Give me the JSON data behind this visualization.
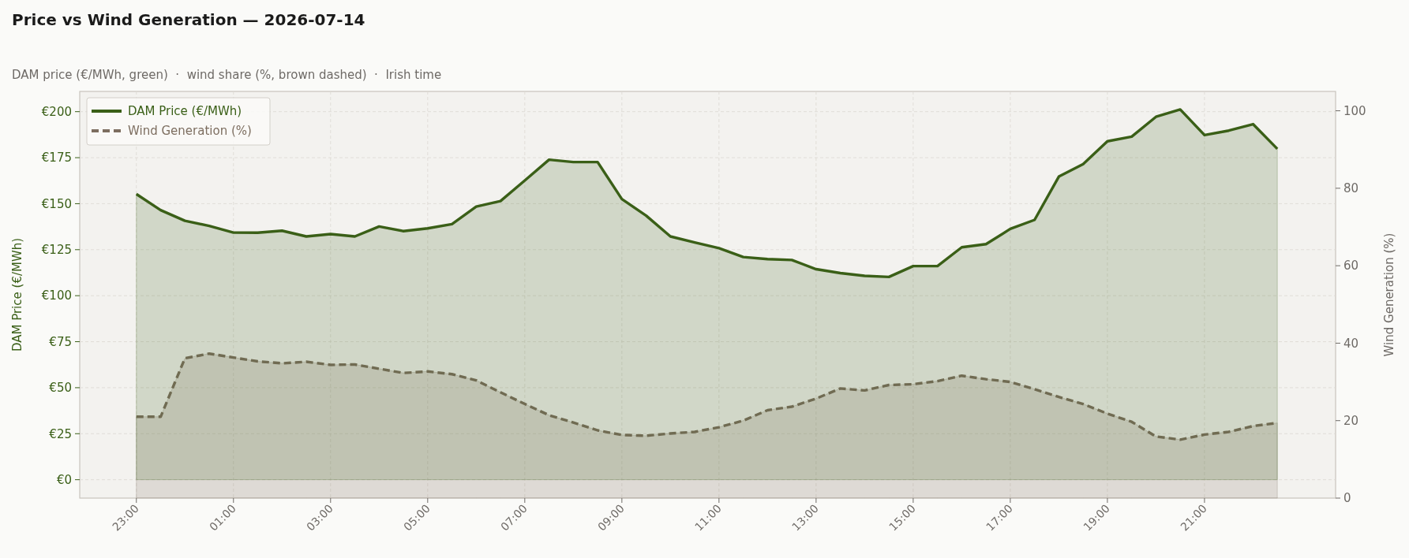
{
  "chart_data": {
    "type": "area",
    "title": "Price vs Wind Generation — 2026-07-14",
    "subtitle": "DAM price (€/MWh, green)  ·  wind share (%, brown dashed)  ·  Irish time",
    "ylabel": "DAM Price (€/MWh)",
    "y2label": "Wind Generation (%)",
    "x": [
      "2026-07-13T23:00",
      "2026-07-13T23:30",
      "2026-07-14T00:00",
      "2026-07-14T00:30",
      "2026-07-14T01:00",
      "2026-07-14T01:30",
      "2026-07-14T02:00",
      "2026-07-14T02:30",
      "2026-07-14T03:00",
      "2026-07-14T03:30",
      "2026-07-14T04:00",
      "2026-07-14T04:30",
      "2026-07-14T05:00",
      "2026-07-14T05:30",
      "2026-07-14T06:00",
      "2026-07-14T06:30",
      "2026-07-14T07:00",
      "2026-07-14T07:30",
      "2026-07-14T08:00",
      "2026-07-14T08:30",
      "2026-07-14T09:00",
      "2026-07-14T09:30",
      "2026-07-14T10:00",
      "2026-07-14T10:30",
      "2026-07-14T11:00",
      "2026-07-14T11:30",
      "2026-07-14T12:00",
      "2026-07-14T12:30",
      "2026-07-14T13:00",
      "2026-07-14T13:30",
      "2026-07-14T14:00",
      "2026-07-14T14:30",
      "2026-07-14T15:00",
      "2026-07-14T15:30",
      "2026-07-14T16:00",
      "2026-07-14T16:30",
      "2026-07-14T17:00",
      "2026-07-14T17:30",
      "2026-07-14T18:00",
      "2026-07-14T18:30",
      "2026-07-14T19:00",
      "2026-07-14T19:30",
      "2026-07-14T20:00",
      "2026-07-14T20:30",
      "2026-07-14T21:00",
      "2026-07-14T21:30",
      "2026-07-14T22:00",
      "2026-07-14T22:30"
    ],
    "series": [
      {
        "name": "DAM Price (€/MWh)",
        "color": "#3a5f17",
        "line_style": "solid",
        "values": [
          155.2,
          146.5,
          140.7,
          137.9,
          134.3,
          134.2,
          135.3,
          132.2,
          133.5,
          132.2,
          137.6,
          135.1,
          136.6,
          138.9,
          148.4,
          151.4,
          162.6,
          173.9,
          172.6,
          172.6,
          152.5,
          143.5,
          132.2,
          128.9,
          125.8,
          121.0,
          119.9,
          119.4,
          114.4,
          112.3,
          110.8,
          110.2,
          116.1,
          116.1,
          126.3,
          128.0,
          136.3,
          141.2,
          164.7,
          171.5,
          183.9,
          186.4,
          197.2,
          201.2,
          187.3,
          189.7,
          193.2,
          179.8
        ]
      },
      {
        "name": "Wind Generation (%)",
        "color": "#7d6e60",
        "axis": "y2",
        "line_style": "dashed",
        "values": [
          21.0,
          21.0,
          36.1,
          37.3,
          36.3,
          35.3,
          34.8,
          35.2,
          34.4,
          34.5,
          33.4,
          32.3,
          32.7,
          32.0,
          30.4,
          27.3,
          24.3,
          21.4,
          19.5,
          17.5,
          16.3,
          16.1,
          16.7,
          17.1,
          18.3,
          20.0,
          22.7,
          23.6,
          25.7,
          28.3,
          27.8,
          29.2,
          29.4,
          30.2,
          31.6,
          30.7,
          30.0,
          28.1,
          26.1,
          24.3,
          21.8,
          19.7,
          15.9,
          15.1,
          16.4,
          17.1,
          18.6,
          19.4
        ]
      }
    ],
    "xlim": [
      "2026-07-13T21:50",
      "2026-07-14T23:42"
    ],
    "xticks": [
      {
        "value": "2026-07-13T23:00",
        "label": "23:00"
      },
      {
        "value": "2026-07-14T01:00",
        "label": "01:00"
      },
      {
        "value": "2026-07-14T03:00",
        "label": "03:00"
      },
      {
        "value": "2026-07-14T05:00",
        "label": "05:00"
      },
      {
        "value": "2026-07-14T07:00",
        "label": "07:00"
      },
      {
        "value": "2026-07-14T09:00",
        "label": "09:00"
      },
      {
        "value": "2026-07-14T11:00",
        "label": "11:00"
      },
      {
        "value": "2026-07-14T13:00",
        "label": "13:00"
      },
      {
        "value": "2026-07-14T15:00",
        "label": "15:00"
      },
      {
        "value": "2026-07-14T17:00",
        "label": "17:00"
      },
      {
        "value": "2026-07-14T19:00",
        "label": "19:00"
      },
      {
        "value": "2026-07-14T21:00",
        "label": "21:00"
      }
    ],
    "ylim": [
      -10,
      211
    ],
    "yticks": [
      {
        "value": 0,
        "label": "€0"
      },
      {
        "value": 25,
        "label": "€25"
      },
      {
        "value": 50,
        "label": "€50"
      },
      {
        "value": 75,
        "label": "€75"
      },
      {
        "value": 100,
        "label": "€100"
      },
      {
        "value": 125,
        "label": "€125"
      },
      {
        "value": 150,
        "label": "€150"
      },
      {
        "value": 175,
        "label": "€175"
      },
      {
        "value": 200,
        "label": "€200"
      }
    ],
    "y2lim": [
      0,
      105
    ],
    "y2ticks": [
      0,
      20,
      40,
      60,
      80,
      100
    ],
    "grid": true,
    "legend": "top left"
  }
}
